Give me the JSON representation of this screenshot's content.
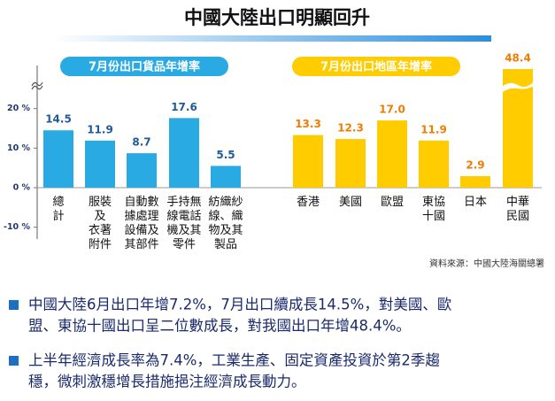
{
  "chart_data": {
    "type": "bar",
    "title": "中國大陸出口明顯回升",
    "ylim": [
      -13,
      30
    ],
    "yticks": [
      {
        "value": 20,
        "label": "20 %"
      },
      {
        "value": 10,
        "label": "10 %"
      },
      {
        "value": 0,
        "label": "0 %"
      },
      {
        "value": -10,
        "label": "-10 %"
      }
    ],
    "series": [
      {
        "name": "7月份出口貨品年增率",
        "color": "#2aaae2",
        "label_color": "#1f5a9a",
        "categories": [
          "總計",
          "服裝及衣著附件",
          "自動數據處理設備及其部件",
          "手持無線電話機及其零件",
          "紡織紗線、織物及其製品"
        ],
        "values": [
          14.5,
          11.9,
          8.7,
          17.6,
          5.5
        ],
        "value_labels": [
          "14.5",
          "11.9",
          "8.7",
          "17.6",
          "5.5"
        ]
      },
      {
        "name": "7月份出口地區年增率",
        "color": "#ffcc00",
        "label_color": "#f07c00",
        "categories": [
          "香港",
          "美國",
          "歐盟",
          "東協十國",
          "日本",
          "中華民國"
        ],
        "values": [
          13.3,
          12.3,
          17.0,
          11.9,
          2.9,
          48.4
        ],
        "value_labels": [
          "13.3",
          "12.3",
          "17.0",
          "11.9",
          "2.9",
          "48.4"
        ]
      }
    ],
    "source": "資料來源：中國大陸海關總署"
  },
  "bullets": [
    [
      "中國大陸6月出口年增7.2%，7月出口續成長14.5%，對美國、歐",
      "盟、東協十國出口呈二位數成長，對我國出口年增48.4%。"
    ],
    [
      "上半年經濟成長率為7.4%，工業生產、固定資產投資於第2季趨",
      "穩，微刺激穩增長措施挹注經濟成長動力。"
    ]
  ]
}
